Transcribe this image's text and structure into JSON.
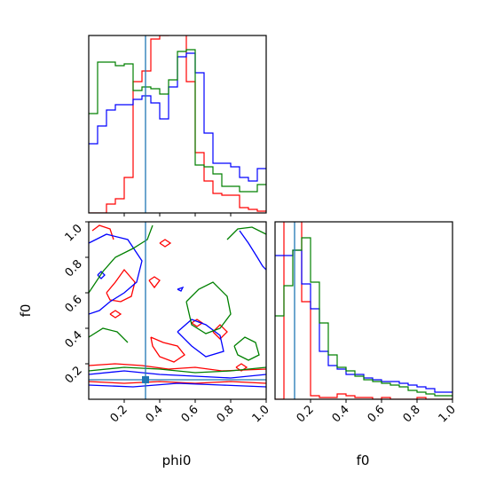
{
  "chart_data": {
    "type": "corner",
    "parameters": [
      "phi0",
      "f0"
    ],
    "truth": {
      "phi0": 0.32,
      "f0": 0.11
    },
    "series_colors": [
      "#ff0000",
      "#0000ff",
      "#008000"
    ],
    "truth_color": "#1f77b4",
    "hist_phi0": {
      "xlim": [
        0.0,
        1.0
      ],
      "xticks": [
        0.2,
        0.4,
        0.6,
        0.8
      ],
      "bin_edges": [
        0.0,
        0.05,
        0.1,
        0.15,
        0.2,
        0.25,
        0.3,
        0.35,
        0.4,
        0.45,
        0.5,
        0.55,
        0.6,
        0.65,
        0.7,
        0.75,
        0.8,
        0.85,
        0.9,
        0.95,
        1.0
      ],
      "ylim": [
        0,
        1.0
      ],
      "series": [
        {
          "color": "#ff0000",
          "values": [
            0.0,
            0.0,
            0.05,
            0.08,
            0.2,
            0.74,
            0.8,
            0.98,
            1.0,
            1.05,
            1.05,
            0.74,
            0.34,
            0.18,
            0.11,
            0.1,
            0.1,
            0.03,
            0.02,
            0.01
          ]
        },
        {
          "color": "#0000ff",
          "values": [
            0.39,
            0.49,
            0.58,
            0.61,
            0.61,
            0.64,
            0.66,
            0.62,
            0.53,
            0.71,
            0.88,
            0.9,
            0.79,
            0.45,
            0.28,
            0.28,
            0.26,
            0.2,
            0.18,
            0.25
          ]
        },
        {
          "color": "#008000",
          "values": [
            0.56,
            0.85,
            0.85,
            0.83,
            0.84,
            0.69,
            0.71,
            0.7,
            0.67,
            0.75,
            0.91,
            0.92,
            0.27,
            0.26,
            0.22,
            0.15,
            0.15,
            0.12,
            0.12,
            0.16
          ]
        }
      ]
    },
    "hist_f0": {
      "xlim": [
        0.0,
        1.0
      ],
      "xticks": [
        0.2,
        0.4,
        0.6,
        0.8,
        1.0
      ],
      "xtick_labels": [
        "0.2",
        "0.4",
        "0.6",
        "0.8",
        "1.0"
      ],
      "bin_edges": [
        0.0,
        0.05,
        0.1,
        0.15,
        0.2,
        0.25,
        0.3,
        0.35,
        0.4,
        0.45,
        0.5,
        0.55,
        0.6,
        0.65,
        0.7,
        0.75,
        0.8,
        0.85,
        0.9,
        0.95,
        1.0
      ],
      "ylim": [
        0,
        1.0
      ],
      "series": [
        {
          "color": "#ff0000",
          "values": [
            0.0,
            1.05,
            1.05,
            0.55,
            0.02,
            0.01,
            0.01,
            0.03,
            0.02,
            0.01,
            0.01,
            0.0,
            0.01,
            0.0,
            0.0,
            0.0,
            0.01,
            0.0,
            0.0,
            0.0
          ]
        },
        {
          "color": "#0000ff",
          "values": [
            0.81,
            0.81,
            0.84,
            0.65,
            0.51,
            0.27,
            0.19,
            0.17,
            0.14,
            0.14,
            0.12,
            0.11,
            0.1,
            0.1,
            0.09,
            0.08,
            0.07,
            0.06,
            0.04,
            0.04
          ]
        },
        {
          "color": "#008000",
          "values": [
            0.47,
            0.64,
            0.84,
            0.91,
            0.66,
            0.43,
            0.25,
            0.18,
            0.16,
            0.13,
            0.11,
            0.1,
            0.09,
            0.08,
            0.07,
            0.05,
            0.04,
            0.03,
            0.02,
            0.02
          ]
        }
      ]
    },
    "scatter": {
      "xlabel": "phi0",
      "ylabel": "f0",
      "xlim": [
        0.0,
        1.0
      ],
      "ylim": [
        0.0,
        1.0
      ],
      "xticks": [
        0.2,
        0.4,
        0.6,
        0.8,
        1.0
      ],
      "xtick_labels": [
        "0.2",
        "0.4",
        "0.6",
        "0.8",
        "1.0"
      ],
      "yticks": [
        0.2,
        0.4,
        0.6,
        0.8,
        1.0
      ],
      "ytick_labels": [
        "0.2",
        "0.4",
        "0.6",
        "0.8",
        "1.0"
      ],
      "contours": [
        {
          "color": "#ff0000",
          "points": [
            [
              0.0,
              0.19
            ],
            [
              0.15,
              0.2
            ],
            [
              0.3,
              0.19
            ],
            [
              0.45,
              0.17
            ],
            [
              0.6,
              0.18
            ],
            [
              0.75,
              0.16
            ],
            [
              1.0,
              0.17
            ]
          ]
        },
        {
          "color": "#ff0000",
          "points": [
            [
              0.0,
              0.1
            ],
            [
              0.2,
              0.09
            ],
            [
              0.4,
              0.1
            ],
            [
              0.6,
              0.09
            ],
            [
              0.8,
              0.1
            ],
            [
              1.0,
              0.09
            ]
          ]
        },
        {
          "color": "#ff0000",
          "points": [
            [
              0.35,
              0.35
            ],
            [
              0.42,
              0.32
            ],
            [
              0.5,
              0.3
            ],
            [
              0.54,
              0.25
            ],
            [
              0.48,
              0.21
            ],
            [
              0.4,
              0.24
            ],
            [
              0.36,
              0.3
            ],
            [
              0.35,
              0.35
            ]
          ]
        },
        {
          "color": "#ff0000",
          "points": [
            [
              0.1,
              0.6
            ],
            [
              0.15,
              0.66
            ],
            [
              0.2,
              0.73
            ],
            [
              0.26,
              0.66
            ],
            [
              0.24,
              0.58
            ],
            [
              0.18,
              0.55
            ],
            [
              0.12,
              0.56
            ],
            [
              0.1,
              0.6
            ]
          ]
        },
        {
          "color": "#ff0000",
          "points": [
            [
              0.02,
              0.95
            ],
            [
              0.06,
              0.98
            ],
            [
              0.12,
              0.96
            ],
            [
              0.14,
              0.9
            ]
          ]
        },
        {
          "color": "#ff0000",
          "points": [
            [
              0.7,
              0.38
            ],
            [
              0.74,
              0.42
            ],
            [
              0.78,
              0.38
            ],
            [
              0.74,
              0.34
            ],
            [
              0.7,
              0.38
            ]
          ]
        },
        {
          "color": "#ff0000",
          "points": [
            [
              0.4,
              0.88
            ],
            [
              0.43,
              0.9
            ],
            [
              0.46,
              0.88
            ],
            [
              0.43,
              0.86
            ],
            [
              0.4,
              0.88
            ]
          ]
        },
        {
          "color": "#ff0000",
          "points": [
            [
              0.34,
              0.67
            ],
            [
              0.37,
              0.69
            ],
            [
              0.4,
              0.67
            ],
            [
              0.37,
              0.63
            ],
            [
              0.34,
              0.67
            ]
          ]
        },
        {
          "color": "#ff0000",
          "points": [
            [
              0.12,
              0.48
            ],
            [
              0.15,
              0.5
            ],
            [
              0.18,
              0.48
            ],
            [
              0.15,
              0.46
            ],
            [
              0.12,
              0.48
            ]
          ]
        },
        {
          "color": "#ff0000",
          "points": [
            [
              0.83,
              0.18
            ],
            [
              0.86,
              0.2
            ],
            [
              0.89,
              0.18
            ],
            [
              0.86,
              0.16
            ],
            [
              0.83,
              0.18
            ]
          ]
        },
        {
          "color": "#ff0000",
          "points": [
            [
              0.58,
              0.43
            ],
            [
              0.61,
              0.45
            ],
            [
              0.64,
              0.43
            ],
            [
              0.61,
              0.41
            ],
            [
              0.58,
              0.43
            ]
          ]
        },
        {
          "color": "#0000ff",
          "points": [
            [
              0.0,
              0.14
            ],
            [
              0.2,
              0.16
            ],
            [
              0.4,
              0.14
            ],
            [
              0.6,
              0.13
            ],
            [
              0.8,
              0.12
            ],
            [
              1.0,
              0.14
            ]
          ]
        },
        {
          "color": "#0000ff",
          "points": [
            [
              0.0,
              0.08
            ],
            [
              0.25,
              0.07
            ],
            [
              0.5,
              0.09
            ],
            [
              0.75,
              0.08
            ],
            [
              1.0,
              0.07
            ]
          ]
        },
        {
          "color": "#0000ff",
          "points": [
            [
              0.0,
              0.88
            ],
            [
              0.1,
              0.93
            ],
            [
              0.22,
              0.9
            ],
            [
              0.3,
              0.78
            ],
            [
              0.27,
              0.66
            ],
            [
              0.2,
              0.6
            ],
            [
              0.12,
              0.55
            ],
            [
              0.06,
              0.5
            ],
            [
              0.0,
              0.48
            ]
          ]
        },
        {
          "color": "#0000ff",
          "points": [
            [
              0.5,
              0.38
            ],
            [
              0.58,
              0.3
            ],
            [
              0.66,
              0.24
            ],
            [
              0.76,
              0.27
            ],
            [
              0.74,
              0.36
            ],
            [
              0.66,
              0.42
            ],
            [
              0.58,
              0.45
            ],
            [
              0.5,
              0.38
            ]
          ]
        },
        {
          "color": "#0000ff",
          "points": [
            [
              0.85,
              0.95
            ],
            [
              0.9,
              0.88
            ],
            [
              0.95,
              0.8
            ],
            [
              0.98,
              0.75
            ],
            [
              1.0,
              0.73
            ]
          ]
        },
        {
          "color": "#0000ff",
          "points": [
            [
              0.05,
              0.7
            ],
            [
              0.07,
              0.72
            ],
            [
              0.09,
              0.7
            ],
            [
              0.07,
              0.68
            ],
            [
              0.05,
              0.7
            ]
          ]
        },
        {
          "color": "#0000ff",
          "points": [
            [
              0.5,
              0.62
            ],
            [
              0.53,
              0.63
            ],
            [
              0.52,
              0.61
            ],
            [
              0.5,
              0.62
            ]
          ]
        },
        {
          "color": "#008000",
          "points": [
            [
              0.0,
              0.16
            ],
            [
              0.2,
              0.18
            ],
            [
              0.4,
              0.17
            ],
            [
              0.6,
              0.15
            ],
            [
              0.8,
              0.16
            ],
            [
              1.0,
              0.18
            ]
          ]
        },
        {
          "color": "#008000",
          "points": [
            [
              0.0,
              0.6
            ],
            [
              0.08,
              0.72
            ],
            [
              0.15,
              0.8
            ],
            [
              0.25,
              0.85
            ],
            [
              0.33,
              0.9
            ],
            [
              0.36,
              0.98
            ]
          ]
        },
        {
          "color": "#008000",
          "points": [
            [
              0.55,
              0.55
            ],
            [
              0.62,
              0.62
            ],
            [
              0.7,
              0.66
            ],
            [
              0.78,
              0.58
            ],
            [
              0.8,
              0.48
            ],
            [
              0.74,
              0.4
            ],
            [
              0.66,
              0.37
            ],
            [
              0.58,
              0.42
            ],
            [
              0.55,
              0.55
            ]
          ]
        },
        {
          "color": "#008000",
          "points": [
            [
              0.78,
              0.9
            ],
            [
              0.84,
              0.96
            ],
            [
              0.92,
              0.97
            ],
            [
              1.0,
              0.93
            ]
          ]
        },
        {
          "color": "#008000",
          "points": [
            [
              0.82,
              0.3
            ],
            [
              0.88,
              0.35
            ],
            [
              0.94,
              0.32
            ],
            [
              0.96,
              0.25
            ],
            [
              0.9,
              0.22
            ],
            [
              0.84,
              0.25
            ],
            [
              0.82,
              0.3
            ]
          ]
        },
        {
          "color": "#008000",
          "points": [
            [
              0.0,
              0.35
            ],
            [
              0.08,
              0.4
            ],
            [
              0.16,
              0.38
            ],
            [
              0.22,
              0.32
            ]
          ]
        }
      ]
    }
  }
}
